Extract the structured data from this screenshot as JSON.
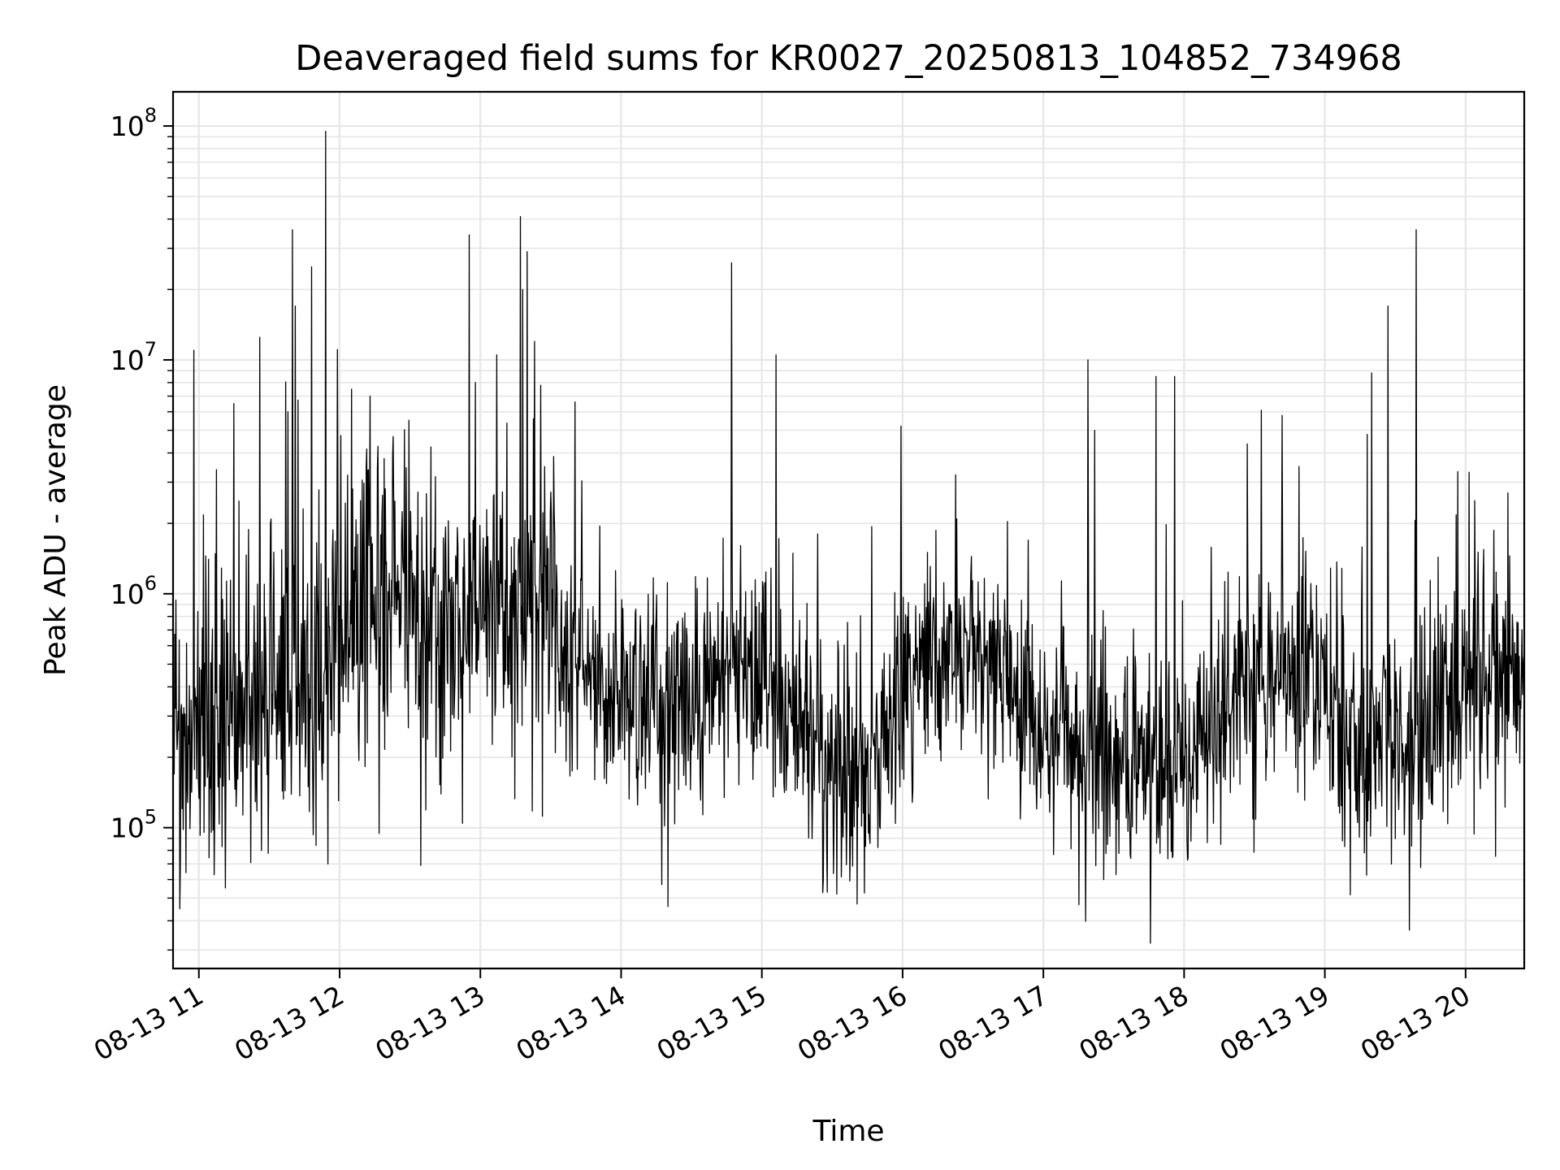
{
  "chart_data": {
    "type": "line",
    "title": "Deaveraged field sums for KR0027_20250813_104852_734968",
    "xlabel": "Time",
    "ylabel": "Peak ADU - average",
    "x_range": [
      "2025-08-13 10:49",
      "2025-08-13 20:25"
    ],
    "x_ticks": [
      "08-13 11",
      "08-13 12",
      "08-13 13",
      "08-13 14",
      "08-13 15",
      "08-13 16",
      "08-13 17",
      "08-13 18",
      "08-13 19",
      "08-13 20"
    ],
    "y_scale": "log",
    "ylim": [
      25000,
      140000000
    ],
    "y_ticks": [
      {
        "base": "10",
        "exp": "5",
        "value": 100000
      },
      {
        "base": "10",
        "exp": "6",
        "value": 1000000
      },
      {
        "base": "10",
        "exp": "7",
        "value": 10000000
      },
      {
        "base": "10",
        "exp": "8",
        "value": 100000000
      }
    ],
    "grid": true,
    "line_color": "#000000",
    "grid_color": "#e6e6e6",
    "baseline": [
      {
        "t": "10:49",
        "v": 200000
      },
      {
        "t": "11:00",
        "v": 250000
      },
      {
        "t": "11:15",
        "v": 300000
      },
      {
        "t": "11:30",
        "v": 400000
      },
      {
        "t": "11:45",
        "v": 500000
      },
      {
        "t": "12:00",
        "v": 650000
      },
      {
        "t": "12:15",
        "v": 900000
      },
      {
        "t": "12:30",
        "v": 1000000
      },
      {
        "t": "12:45",
        "v": 750000
      },
      {
        "t": "13:00",
        "v": 1000000
      },
      {
        "t": "13:15",
        "v": 1100000
      },
      {
        "t": "13:30",
        "v": 800000
      },
      {
        "t": "13:45",
        "v": 450000
      },
      {
        "t": "14:00",
        "v": 350000
      },
      {
        "t": "14:15",
        "v": 350000
      },
      {
        "t": "14:30",
        "v": 300000
      },
      {
        "t": "14:45",
        "v": 500000
      },
      {
        "t": "15:00",
        "v": 450000
      },
      {
        "t": "15:15",
        "v": 300000
      },
      {
        "t": "15:30",
        "v": 170000
      },
      {
        "t": "15:45",
        "v": 150000
      },
      {
        "t": "16:00",
        "v": 400000
      },
      {
        "t": "16:15",
        "v": 600000
      },
      {
        "t": "16:30",
        "v": 550000
      },
      {
        "t": "16:45",
        "v": 400000
      },
      {
        "t": "17:00",
        "v": 250000
      },
      {
        "t": "17:15",
        "v": 250000
      },
      {
        "t": "17:30",
        "v": 200000
      },
      {
        "t": "17:45",
        "v": 200000
      },
      {
        "t": "18:00",
        "v": 220000
      },
      {
        "t": "18:15",
        "v": 300000
      },
      {
        "t": "18:30",
        "v": 450000
      },
      {
        "t": "18:45",
        "v": 450000
      },
      {
        "t": "19:00",
        "v": 350000
      },
      {
        "t": "19:15",
        "v": 200000
      },
      {
        "t": "19:30",
        "v": 220000
      },
      {
        "t": "19:45",
        "v": 250000
      },
      {
        "t": "20:00",
        "v": 380000
      },
      {
        "t": "20:15",
        "v": 500000
      },
      {
        "t": "20:25",
        "v": 500000
      }
    ],
    "peaks": [
      {
        "t": "10:58",
        "v": 11000000
      },
      {
        "t": "11:15",
        "v": 6500000
      },
      {
        "t": "11:26",
        "v": 12500000
      },
      {
        "t": "11:38",
        "v": 6000000
      },
      {
        "t": "11:40",
        "v": 36000000
      },
      {
        "t": "11:41",
        "v": 17000000
      },
      {
        "t": "11:48",
        "v": 25000000
      },
      {
        "t": "11:54",
        "v": 95000000
      },
      {
        "t": "12:05",
        "v": 7500000
      },
      {
        "t": "12:13",
        "v": 7000000
      },
      {
        "t": "12:58",
        "v": 8000000
      },
      {
        "t": "13:07",
        "v": 10500000
      },
      {
        "t": "13:17",
        "v": 41000000
      },
      {
        "t": "13:18",
        "v": 20000000
      },
      {
        "t": "13:20",
        "v": 29000000
      },
      {
        "t": "13:23",
        "v": 12000000
      },
      {
        "t": "14:47",
        "v": 26000000
      },
      {
        "t": "15:06",
        "v": 10500000
      },
      {
        "t": "17:19",
        "v": 10000000
      },
      {
        "t": "17:22",
        "v": 5000000
      },
      {
        "t": "17:48",
        "v": 8500000
      },
      {
        "t": "17:56",
        "v": 8500000
      },
      {
        "t": "19:18",
        "v": 4800000
      },
      {
        "t": "19:20",
        "v": 8800000
      },
      {
        "t": "19:27",
        "v": 17000000
      },
      {
        "t": "19:39",
        "v": 36000000
      },
      {
        "t": "20:18",
        "v": 2700000
      }
    ],
    "dips": [
      {
        "t": "10:52",
        "v": 45000
      },
      {
        "t": "11:55",
        "v": 70000
      },
      {
        "t": "14:20",
        "v": 46000
      },
      {
        "t": "15:28",
        "v": 53000
      },
      {
        "t": "15:32",
        "v": 52000
      },
      {
        "t": "17:31",
        "v": 63000
      }
    ]
  }
}
